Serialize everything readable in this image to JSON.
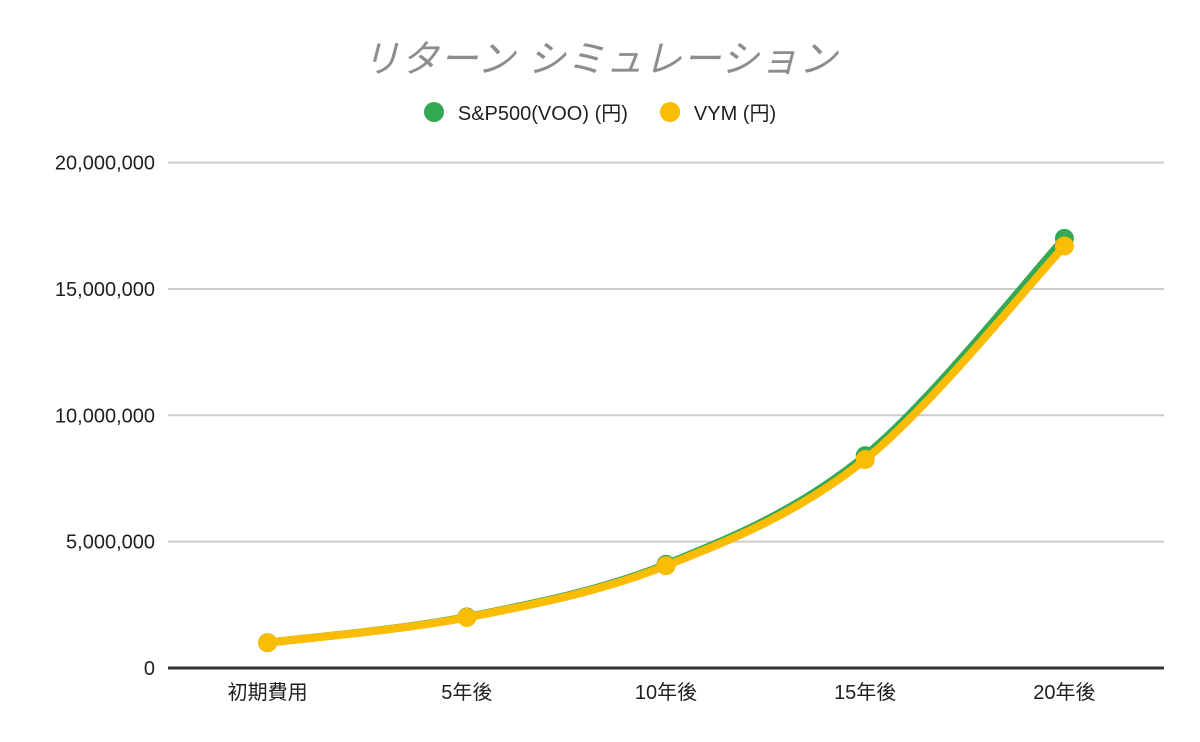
{
  "title": "リターン シミュレーション",
  "chart_data": {
    "type": "line",
    "title": "リターン シミュレーション",
    "categories": [
      "初期費用",
      "5年後",
      "10年後",
      "15年後",
      "20年後"
    ],
    "series": [
      {
        "name": "S&P500(VOO) (円)",
        "color": "#34a853",
        "values": [
          1000000,
          2020000,
          4100000,
          8400000,
          17000000
        ]
      },
      {
        "name": "VYM (円)",
        "color": "#fbbc04",
        "values": [
          1000000,
          2000000,
          4050000,
          8250000,
          16700000
        ]
      }
    ],
    "xlabel": "",
    "ylabel": "",
    "ylim": [
      0,
      20000000
    ],
    "y_ticks": [
      0,
      5000000,
      10000000,
      15000000,
      20000000
    ],
    "y_tick_labels": [
      "0",
      "5,000,000",
      "10,000,000",
      "15,000,000",
      "20,000,000"
    ],
    "grid": true,
    "smooth": true,
    "legend_position": "top",
    "marker_radius": 9.5,
    "line_width": 8
  },
  "styles": {
    "title_color": "#8d8d8d",
    "label_color": "#1f1f1f",
    "gridline_color": "#cccccc",
    "axis_line_color": "#333333",
    "background": "#ffffff"
  }
}
